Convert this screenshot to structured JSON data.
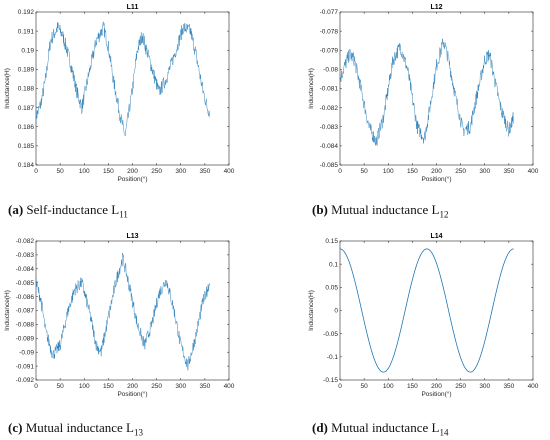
{
  "chart_data": [
    {
      "type": "line",
      "title": "L11",
      "xlabel": "Position(°)",
      "ylabel": "Inductance(H)",
      "xlim": [
        0,
        400
      ],
      "ylim": [
        0.184,
        0.192
      ],
      "xticks": [
        0,
        50,
        100,
        150,
        200,
        250,
        300,
        350,
        400
      ],
      "yticks": [
        0.184,
        0.185,
        0.186,
        0.187,
        0.188,
        0.189,
        0.19,
        0.191,
        0.192
      ],
      "ytick_labels": [
        "0.184",
        "0.185",
        "0.186",
        "0.187",
        "0.188",
        "0.189",
        "0.19",
        "0.191",
        "0.192"
      ],
      "color": "#1f77b4",
      "caption": {
        "letter": "(a)",
        "text": "Self-inductance L",
        "sub": "11"
      },
      "series": [
        {
          "x": [
            0,
            10,
            20,
            30,
            45,
            55,
            70,
            85,
            95,
            110,
            125,
            140,
            150,
            160,
            175,
            185,
            200,
            210,
            220,
            235,
            255,
            270,
            290,
            305,
            320,
            330,
            345,
            355,
            360
          ],
          "y": [
            0.1865,
            0.1872,
            0.1885,
            0.1905,
            0.1912,
            0.1908,
            0.1895,
            0.1878,
            0.187,
            0.1888,
            0.1905,
            0.1912,
            0.1902,
            0.1885,
            0.1865,
            0.1855,
            0.188,
            0.19,
            0.1908,
            0.1895,
            0.1878,
            0.1885,
            0.19,
            0.1912,
            0.191,
            0.19,
            0.188,
            0.187,
            0.1868
          ]
        }
      ]
    },
    {
      "type": "line",
      "title": "L12",
      "xlabel": "Position(°)",
      "ylabel": "Inductance(H)",
      "xlim": [
        0,
        400
      ],
      "ylim": [
        -0.085,
        -0.077
      ],
      "xticks": [
        0,
        50,
        100,
        150,
        200,
        250,
        300,
        350,
        400
      ],
      "yticks": [
        -0.085,
        -0.084,
        -0.083,
        -0.082,
        -0.081,
        -0.08,
        -0.079,
        -0.078,
        -0.077
      ],
      "ytick_labels": [
        "-0.085",
        "-0.084",
        "-0.083",
        "-0.082",
        "-0.081",
        "-0.08",
        "-0.079",
        "-0.078",
        "-0.077"
      ],
      "color": "#1f77b4",
      "caption": {
        "letter": "(b)",
        "text": "Mutual inductance L",
        "sub": "12"
      },
      "series": [
        {
          "x": [
            0,
            10,
            20,
            30,
            45,
            60,
            75,
            90,
            100,
            110,
            125,
            140,
            150,
            160,
            175,
            185,
            200,
            215,
            225,
            240,
            255,
            270,
            285,
            300,
            310,
            320,
            335,
            350,
            360
          ],
          "y": [
            -0.0805,
            -0.0798,
            -0.0792,
            -0.0795,
            -0.0812,
            -0.083,
            -0.0838,
            -0.0825,
            -0.081,
            -0.0795,
            -0.0788,
            -0.08,
            -0.0815,
            -0.083,
            -0.0836,
            -0.0822,
            -0.0798,
            -0.0785,
            -0.0795,
            -0.0815,
            -0.0832,
            -0.083,
            -0.0812,
            -0.0795,
            -0.0792,
            -0.0805,
            -0.0822,
            -0.0832,
            -0.0825
          ]
        }
      ]
    },
    {
      "type": "line",
      "title": "L13",
      "xlabel": "Position(°)",
      "ylabel": "Inductance(H)",
      "xlim": [
        0,
        400
      ],
      "ylim": [
        -0.092,
        -0.082
      ],
      "xticks": [
        0,
        50,
        100,
        150,
        200,
        250,
        300,
        350,
        400
      ],
      "yticks": [
        -0.092,
        -0.091,
        -0.09,
        -0.089,
        -0.088,
        -0.087,
        -0.086,
        -0.085,
        -0.084,
        -0.083,
        -0.082
      ],
      "ytick_labels": [
        "-0.092",
        "-0.091",
        "-0.09",
        "-0.089",
        "-0.088",
        "-0.087",
        "-0.086",
        "-0.085",
        "-0.084",
        "-0.083",
        "-0.082"
      ],
      "color": "#1f77b4",
      "caption": {
        "letter": "(c)",
        "text": "Mutual inductance L",
        "sub": "13"
      },
      "series": [
        {
          "x": [
            0,
            10,
            20,
            35,
            50,
            65,
            80,
            95,
            110,
            125,
            135,
            150,
            165,
            180,
            195,
            210,
            225,
            240,
            255,
            270,
            285,
            300,
            315,
            330,
            345,
            360
          ],
          "y": [
            -0.085,
            -0.0862,
            -0.0885,
            -0.0902,
            -0.0895,
            -0.0872,
            -0.0855,
            -0.085,
            -0.087,
            -0.0895,
            -0.09,
            -0.0875,
            -0.085,
            -0.0832,
            -0.0855,
            -0.088,
            -0.0895,
            -0.088,
            -0.0858,
            -0.0848,
            -0.0868,
            -0.0895,
            -0.091,
            -0.089,
            -0.0865,
            -0.085
          ]
        }
      ]
    },
    {
      "type": "line",
      "title": "L14",
      "xlabel": "Position(°)",
      "ylabel": "Inductance(H)",
      "xlim": [
        0,
        400
      ],
      "ylim": [
        -0.15,
        0.15
      ],
      "xticks": [
        0,
        50,
        100,
        150,
        200,
        250,
        300,
        350,
        400
      ],
      "yticks": [
        -0.15,
        -0.1,
        -0.05,
        0,
        0.05,
        0.1,
        0.15
      ],
      "ytick_labels": [
        "-0.15",
        "-0.1",
        "-0.05",
        "0",
        "0.05",
        "0.1",
        "0.15"
      ],
      "color": "#1f77b4",
      "caption": {
        "letter": "(d)",
        "text": "Mutual inductance L",
        "sub": "14"
      },
      "series": [
        {
          "x": [
            0,
            15,
            30,
            45,
            60,
            75,
            90,
            105,
            120,
            135,
            150,
            165,
            180,
            195,
            210,
            225,
            240,
            255,
            270,
            285,
            300,
            315,
            330,
            345,
            360
          ],
          "y": [
            0.133,
            0.128,
            0.115,
            0.094,
            0.0665,
            0.0344,
            0,
            -0.0344,
            -0.0665,
            -0.094,
            -0.115,
            -0.128,
            0.133,
            0.128,
            0.115,
            0.094,
            0.0665,
            0.0344,
            -0.133,
            -0.128,
            -0.115,
            -0.094,
            0.0665,
            0.115,
            0.133
          ]
        }
      ]
    }
  ]
}
